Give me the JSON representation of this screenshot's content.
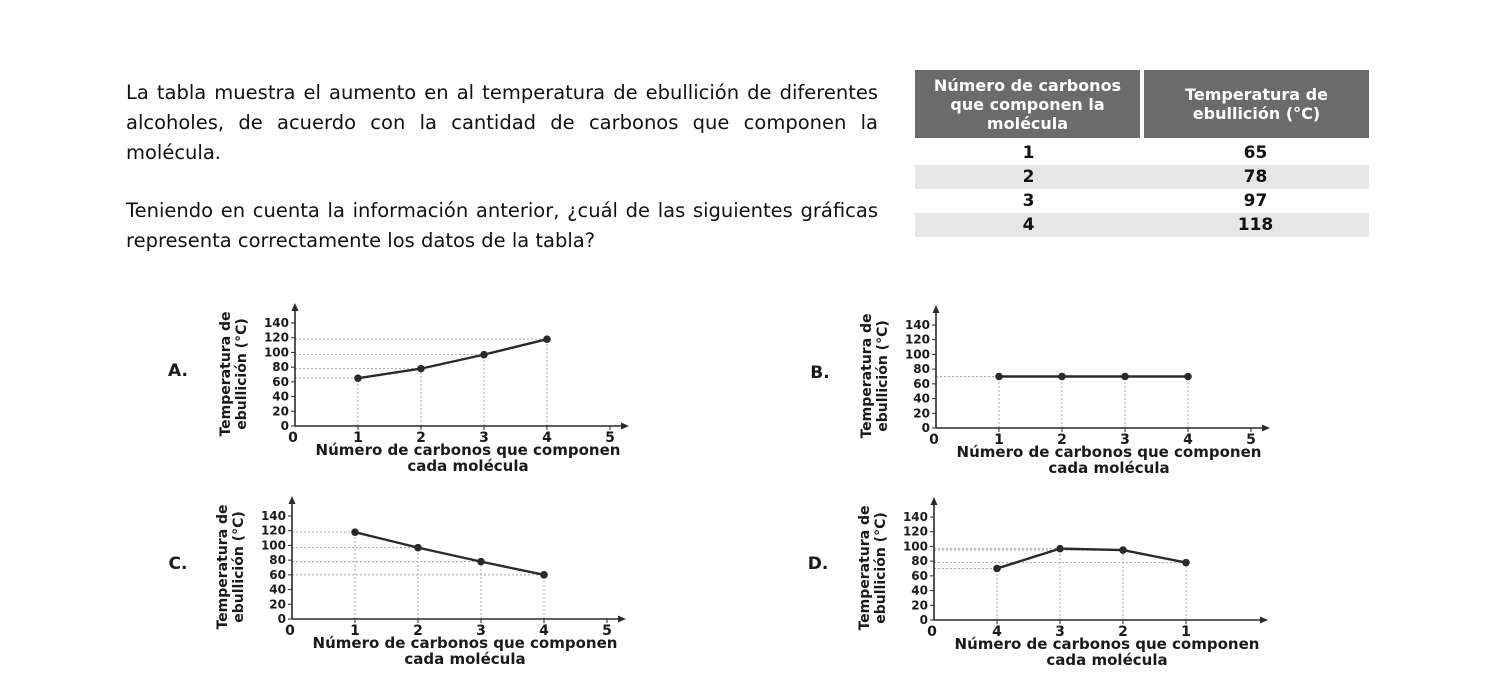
{
  "question": {
    "paragraph1": "La tabla muestra el aumento en al temperatura de ebullición de diferentes alcoholes, de acuerdo con la cantidad de carbonos que componen la molécula.",
    "paragraph2": "Teniendo en cuenta la información anterior, ¿cuál de las siguientes gráficas representa correctamente los datos de la tabla?"
  },
  "table": {
    "headers": [
      "Número de carbonos que componen la molécula",
      "Temperatura de ebullición (°C)"
    ],
    "rows": [
      [
        "1",
        "65"
      ],
      [
        "2",
        "78"
      ],
      [
        "3",
        "97"
      ],
      [
        "4",
        "118"
      ]
    ]
  },
  "colors": {
    "line": "#2a2a2a",
    "grid": "#a8a8a8",
    "header_bg": "#6b6b6b",
    "row_alt": "#e6e6e6"
  },
  "chart_data": [
    {
      "option": "A.",
      "type": "line",
      "ylabel": [
        "Temperatura de",
        "ebullición (°C)"
      ],
      "xlabel": [
        "Número de carbonos que componen",
        "cada molécula"
      ],
      "xticks": [
        "0",
        "1",
        "2",
        "3",
        "4",
        "5"
      ],
      "yticks": [
        "0",
        "20",
        "40",
        "60",
        "80",
        "100",
        "120",
        "140"
      ],
      "ylim": [
        0,
        140
      ],
      "x": [
        "1",
        "2",
        "3",
        "4"
      ],
      "y": [
        65,
        78,
        97,
        118
      ]
    },
    {
      "option": "B.",
      "type": "line",
      "ylabel": [
        "Temperatura de",
        "ebullición (°C)"
      ],
      "xlabel": [
        "Número de carbonos que componen",
        "cada molécula"
      ],
      "xticks": [
        "0",
        "1",
        "2",
        "3",
        "4",
        "5"
      ],
      "yticks": [
        "0",
        "20",
        "40",
        "60",
        "80",
        "100",
        "120",
        "140"
      ],
      "ylim": [
        0,
        140
      ],
      "x": [
        "1",
        "2",
        "3",
        "4"
      ],
      "y": [
        70,
        70,
        70,
        70
      ]
    },
    {
      "option": "C.",
      "type": "line",
      "ylabel": [
        "Temperatura de",
        "ebullición (°C)"
      ],
      "xlabel": [
        "Número de carbonos que componen",
        "cada molécula"
      ],
      "xticks": [
        "0",
        "1",
        "2",
        "3",
        "4",
        "5"
      ],
      "yticks": [
        "0",
        "20",
        "40",
        "60",
        "80",
        "100",
        "120",
        "140"
      ],
      "ylim": [
        0,
        140
      ],
      "x": [
        "1",
        "2",
        "3",
        "4"
      ],
      "y": [
        118,
        97,
        78,
        60
      ]
    },
    {
      "option": "D.",
      "type": "line",
      "ylabel": [
        "Temperatura de",
        "ebullición (°C)"
      ],
      "xlabel": [
        "Número de carbonos que componen",
        "cada molécula"
      ],
      "xticks": [
        "0",
        "4",
        "3",
        "2",
        "1"
      ],
      "yticks": [
        "0",
        "20",
        "40",
        "60",
        "80",
        "100",
        "120",
        "140"
      ],
      "ylim": [
        0,
        140
      ],
      "x": [
        "4",
        "3",
        "2",
        "1"
      ],
      "y": [
        70,
        97,
        95,
        78
      ]
    }
  ]
}
